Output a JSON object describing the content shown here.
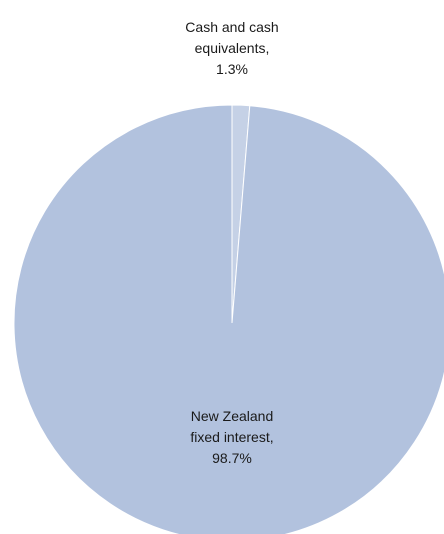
{
  "chart_data": {
    "type": "pie",
    "title": "",
    "slices": [
      {
        "label": "Cash and cash equivalents",
        "value": 1.3,
        "color": "#c5d1e6",
        "label_lines": [
          "Cash and cash",
          "equivalents,",
          "1.3%"
        ]
      },
      {
        "label": "New Zealand fixed interest",
        "value": 98.7,
        "color": "#b2c2de",
        "label_lines": [
          "New Zealand",
          "fixed interest,",
          "98.7%"
        ]
      }
    ],
    "legend": "none",
    "data_labels": "category, percentage"
  }
}
